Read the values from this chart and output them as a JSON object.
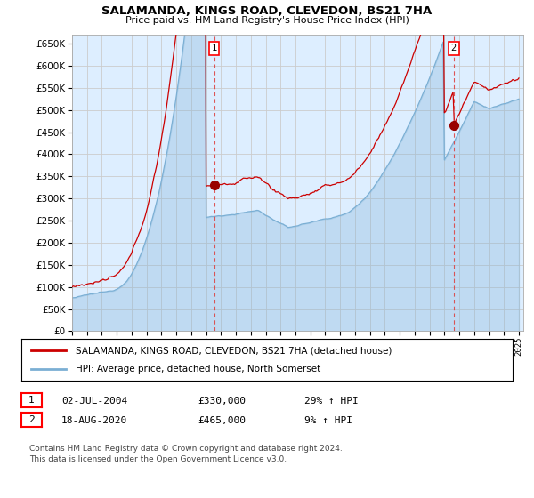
{
  "title": "SALAMANDA, KINGS ROAD, CLEVEDON, BS21 7HA",
  "subtitle": "Price paid vs. HM Land Registry's House Price Index (HPI)",
  "ylim": [
    0,
    670000
  ],
  "yticks": [
    0,
    50000,
    100000,
    150000,
    200000,
    250000,
    300000,
    350000,
    400000,
    450000,
    500000,
    550000,
    600000,
    650000
  ],
  "x_start_year": 1995,
  "x_end_year": 2025,
  "sale1_date": "02-JUL-2004",
  "sale1_price": 330000,
  "sale1_hpi_pct": "29%",
  "sale2_date": "18-AUG-2020",
  "sale2_price": 465000,
  "sale2_hpi_pct": "9%",
  "line1_label": "SALAMANDA, KINGS ROAD, CLEVEDON, BS21 7HA (detached house)",
  "line2_label": "HPI: Average price, detached house, North Somerset",
  "line1_color": "#cc0000",
  "line2_color": "#7bafd4",
  "fill_color": "#ddeeff",
  "marker_color": "#990000",
  "dashed_color": "#dd4444",
  "grid_color": "#cccccc",
  "bg_color": "#ffffff",
  "footnote1": "Contains HM Land Registry data © Crown copyright and database right 2024.",
  "footnote2": "This data is licensed under the Open Government Licence v3.0."
}
